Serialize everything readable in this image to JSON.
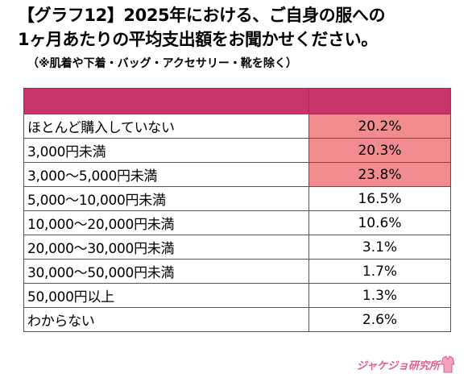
{
  "title_line1": "【グラフ12】2025年における、ご自身の服への",
  "title_line2": "1ヶ月あたりの平均支出額をお聞かせください。",
  "subtitle": "（※肌着や下着・バッグ・アクセサリー・靴を除く）",
  "brand_text": "ジャケジョ研究所",
  "colors": {
    "header": "#c7336b",
    "highlight": "#f08c8f",
    "logo": "#e35c8f"
  },
  "chart_data": {
    "type": "table",
    "header": [
      "",
      ""
    ],
    "rows": [
      {
        "category": "ほとんど購入していない",
        "value": "20.2%",
        "highlight": true
      },
      {
        "category": "3,000円未満",
        "value": "20.3%",
        "highlight": true
      },
      {
        "category": "3,000～5,000円未満",
        "value": "23.8%",
        "highlight": true
      },
      {
        "category": "5,000～10,000円未満",
        "value": "16.5%",
        "highlight": false
      },
      {
        "category": "10,000～20,000円未満",
        "value": "10.6%",
        "highlight": false
      },
      {
        "category": "20,000～30,000円未満",
        "value": "3.1%",
        "highlight": false
      },
      {
        "category": "30,000～50,000円未満",
        "value": "1.7%",
        "highlight": false
      },
      {
        "category": "50,000円以上",
        "value": "1.3%",
        "highlight": false
      },
      {
        "category": "わからない",
        "value": "2.6%",
        "highlight": false
      }
    ]
  }
}
